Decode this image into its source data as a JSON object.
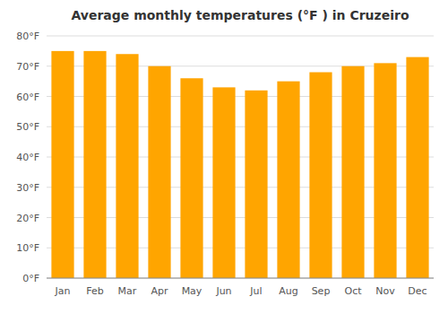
{
  "chart_data": {
    "type": "bar",
    "title": "Average monthly temperatures (°F ) in Cruzeiro",
    "categories": [
      "Jan",
      "Feb",
      "Mar",
      "Apr",
      "May",
      "Jun",
      "Jul",
      "Aug",
      "Sep",
      "Oct",
      "Nov",
      "Dec"
    ],
    "values": [
      75,
      75,
      74,
      70,
      66,
      63,
      62,
      65,
      68,
      70,
      71,
      73
    ],
    "color": "#FFA500",
    "ylim": [
      0,
      80
    ],
    "yticks": [
      {
        "value": 0,
        "label": "0°F"
      },
      {
        "value": 10,
        "label": "10°F"
      },
      {
        "value": 20,
        "label": "20°F"
      },
      {
        "value": 30,
        "label": "30°F"
      },
      {
        "value": 40,
        "label": "40°F"
      },
      {
        "value": 50,
        "label": "50°F"
      },
      {
        "value": 60,
        "label": "60°F"
      },
      {
        "value": 70,
        "label": "70°F"
      },
      {
        "value": 80,
        "label": "80°F"
      }
    ],
    "grid": true
  }
}
